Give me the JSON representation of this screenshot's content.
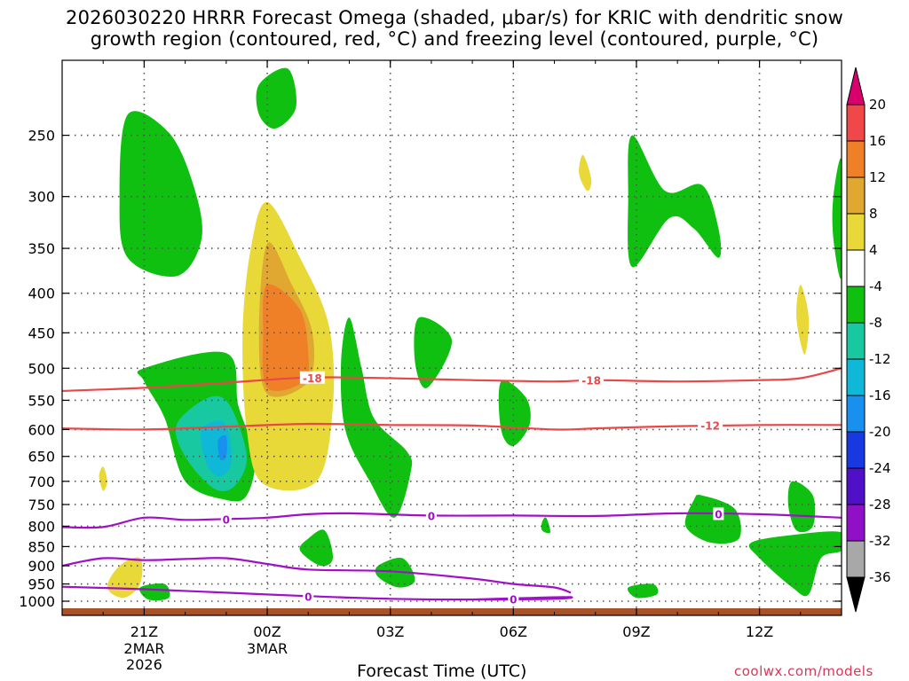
{
  "title": {
    "line1": "2026030220 HRRR Forecast Omega (shaded, μbar/s) for KRIC with dendritic snow",
    "line2": "growth region (contoured, red, °C) and freezing level (contoured, purple, °C)"
  },
  "xlabel": "Forecast Time (UTC)",
  "watermark": "coolwx.com/models",
  "chart_data": {
    "type": "heatmap",
    "x_unit": "hours from 2026030220",
    "xlim": [
      -1,
      18
    ],
    "y_unit": "hPa",
    "ylim": [
      1000,
      200
    ],
    "x_ticks": [
      {
        "x": 1,
        "label": "21Z",
        "sub": [
          "2MAR",
          "2026"
        ]
      },
      {
        "x": 4,
        "label": "00Z",
        "sub": [
          "3MAR"
        ]
      },
      {
        "x": 7,
        "label": "03Z",
        "sub": []
      },
      {
        "x": 10,
        "label": "06Z",
        "sub": []
      },
      {
        "x": 13,
        "label": "09Z",
        "sub": []
      },
      {
        "x": 16,
        "label": "12Z",
        "sub": []
      }
    ],
    "y_ticks": [
      250,
      300,
      350,
      400,
      450,
      500,
      550,
      600,
      650,
      700,
      750,
      800,
      850,
      900,
      950,
      1000
    ],
    "colorbar": {
      "levels": [
        20,
        16,
        12,
        8,
        4,
        -4,
        -8,
        -12,
        -16,
        -20,
        -24,
        -28,
        -32,
        -36
      ],
      "colors": [
        "#d8006c",
        "#f04848",
        "#f08028",
        "#e0a830",
        "#e8d838",
        "#ffffff",
        "#10c010",
        "#18c8a0",
        "#10b8d8",
        "#1890f0",
        "#1838e0",
        "#5010c8",
        "#9010c8",
        "#a8a8a8",
        "#000000"
      ]
    },
    "shaded_regions": [
      {
        "range": "-8 to -4",
        "color": "#10c010",
        "pts": [
          [
            0.6,
            235
          ],
          [
            1.6,
            248
          ],
          [
            2.2,
            290
          ],
          [
            2.4,
            340
          ],
          [
            1.8,
            380
          ],
          [
            0.6,
            360
          ],
          [
            0.4,
            300
          ]
        ]
      },
      {
        "range": "-8 to -4",
        "color": "#10c010",
        "pts": [
          [
            3.8,
            215
          ],
          [
            4.5,
            205
          ],
          [
            4.7,
            230
          ],
          [
            4.2,
            245
          ],
          [
            3.8,
            235
          ]
        ]
      },
      {
        "range": "-8 to -4",
        "color": "#10c010",
        "pts": [
          [
            1.0,
            500
          ],
          [
            3.0,
            478
          ],
          [
            3.3,
            560
          ],
          [
            3.7,
            650
          ],
          [
            3.5,
            730
          ],
          [
            3.0,
            740
          ],
          [
            2.0,
            700
          ],
          [
            1.5,
            580
          ],
          [
            1.0,
            520
          ]
        ]
      },
      {
        "range": "-12 to -8",
        "color": "#18c8a0",
        "pts": [
          [
            1.8,
            590
          ],
          [
            2.6,
            545
          ],
          [
            3.1,
            560
          ],
          [
            3.5,
            650
          ],
          [
            3.2,
            710
          ],
          [
            2.7,
            715
          ],
          [
            2.0,
            650
          ]
        ]
      },
      {
        "range": "-16 to -12",
        "color": "#10b8d8",
        "pts": [
          [
            2.4,
            600
          ],
          [
            2.9,
            585
          ],
          [
            3.1,
            620
          ],
          [
            3.1,
            670
          ],
          [
            2.8,
            690
          ],
          [
            2.5,
            660
          ]
        ]
      },
      {
        "range": "-20 to -16",
        "color": "#1890f0",
        "pts": [
          [
            2.8,
            620
          ],
          [
            3.0,
            612
          ],
          [
            3.0,
            650
          ],
          [
            2.85,
            655
          ]
        ]
      },
      {
        "range": "4 to 8",
        "color": "#e8d838",
        "pts": [
          [
            4.0,
            305
          ],
          [
            4.8,
            360
          ],
          [
            5.5,
            440
          ],
          [
            5.6,
            560
          ],
          [
            5.2,
            700
          ],
          [
            3.9,
            705
          ],
          [
            3.5,
            600
          ],
          [
            3.4,
            450
          ],
          [
            3.6,
            350
          ]
        ]
      },
      {
        "range": "8 to 12",
        "color": "#e0a830",
        "pts": [
          [
            4.0,
            345
          ],
          [
            4.6,
            390
          ],
          [
            5.1,
            450
          ],
          [
            5.0,
            520
          ],
          [
            4.0,
            540
          ],
          [
            3.8,
            450
          ]
        ]
      },
      {
        "range": "12 to 16",
        "color": "#f08028",
        "pts": [
          [
            4.0,
            390
          ],
          [
            4.8,
            420
          ],
          [
            5.0,
            480
          ],
          [
            4.9,
            520
          ],
          [
            4.0,
            530
          ],
          [
            3.9,
            450
          ]
        ]
      },
      {
        "range": "-8 to -4",
        "color": "#10c010",
        "pts": [
          [
            6.0,
            430
          ],
          [
            6.3,
            500
          ],
          [
            6.6,
            580
          ],
          [
            7.4,
            640
          ],
          [
            7.5,
            680
          ],
          [
            7.1,
            780
          ],
          [
            6.5,
            700
          ],
          [
            5.9,
            600
          ],
          [
            5.8,
            490
          ]
        ]
      },
      {
        "range": "-8 to -4",
        "color": "#10c010",
        "pts": [
          [
            7.7,
            430
          ],
          [
            8.5,
            460
          ],
          [
            7.9,
            530
          ],
          [
            7.6,
            490
          ]
        ]
      },
      {
        "range": "-8 to -4",
        "color": "#10c010",
        "pts": [
          [
            9.7,
            520
          ],
          [
            10.3,
            545
          ],
          [
            10.4,
            590
          ],
          [
            10.0,
            630
          ],
          [
            9.7,
            600
          ]
        ]
      },
      {
        "range": "-8 to -4",
        "color": "#10c010",
        "pts": [
          [
            12.9,
            250
          ],
          [
            13.7,
            295
          ],
          [
            14.6,
            290
          ],
          [
            15.0,
            330
          ],
          [
            15.0,
            360
          ],
          [
            14.4,
            330
          ],
          [
            13.8,
            320
          ],
          [
            12.9,
            370
          ],
          [
            12.8,
            300
          ]
        ]
      },
      {
        "range": "-8 to -4",
        "color": "#10c010",
        "pts": [
          [
            16.9,
            820
          ],
          [
            18,
            815
          ],
          [
            18,
            860
          ],
          [
            17.5,
            880
          ],
          [
            17.2,
            980
          ],
          [
            16.8,
            960
          ],
          [
            16.0,
            880
          ],
          [
            15.8,
            840
          ]
        ]
      },
      {
        "range": "-8 to -4",
        "color": "#10c010",
        "pts": [
          [
            14.6,
            730
          ],
          [
            15.4,
            760
          ],
          [
            15.5,
            830
          ],
          [
            14.8,
            840
          ],
          [
            14.2,
            800
          ],
          [
            14.4,
            740
          ]
        ]
      },
      {
        "range": "-8 to -4",
        "color": "#10c010",
        "pts": [
          [
            16.8,
            700
          ],
          [
            17.3,
            730
          ],
          [
            17.3,
            800
          ],
          [
            16.9,
            810
          ],
          [
            16.7,
            750
          ]
        ]
      },
      {
        "range": "-8 to -4",
        "color": "#10c010",
        "pts": [
          [
            17.8,
            300
          ],
          [
            18,
            270
          ],
          [
            18,
            380
          ],
          [
            17.8,
            340
          ]
        ]
      },
      {
        "range": "-8 to -4",
        "color": "#10c010",
        "pts": [
          [
            5.0,
            830
          ],
          [
            5.4,
            810
          ],
          [
            5.6,
            880
          ],
          [
            5.3,
            900
          ],
          [
            4.8,
            860
          ]
        ]
      },
      {
        "range": "-8 to -4",
        "color": "#10c010",
        "pts": [
          [
            6.7,
            900
          ],
          [
            7.3,
            880
          ],
          [
            7.6,
            940
          ],
          [
            7.2,
            960
          ],
          [
            6.7,
            930
          ]
        ]
      },
      {
        "range": "-8 to -4",
        "color": "#10c010",
        "pts": [
          [
            0.9,
            960
          ],
          [
            1.5,
            950
          ],
          [
            1.6,
            990
          ],
          [
            1.1,
            995
          ]
        ]
      },
      {
        "range": "-8 to -4",
        "color": "#10c010",
        "pts": [
          [
            12.8,
            960
          ],
          [
            13.4,
            950
          ],
          [
            13.5,
            980
          ],
          [
            13.0,
            990
          ]
        ]
      },
      {
        "range": "-8 to -4",
        "color": "#10c010",
        "pts": [
          [
            10.7,
            790
          ],
          [
            10.8,
            780
          ],
          [
            10.9,
            815
          ],
          [
            10.7,
            810
          ]
        ]
      },
      {
        "range": "4 to 8",
        "color": "#e8d838",
        "pts": [
          [
            -0.1,
            690
          ],
          [
            0.0,
            670
          ],
          [
            0.1,
            700
          ],
          [
            0.0,
            720
          ]
        ]
      },
      {
        "range": "4 to 8",
        "color": "#e8d838",
        "pts": [
          [
            0.4,
            900
          ],
          [
            0.9,
            880
          ],
          [
            0.9,
            950
          ],
          [
            0.5,
            990
          ],
          [
            0.1,
            960
          ]
        ]
      },
      {
        "range": "4 to 8",
        "color": "#e8d838",
        "pts": [
          [
            11.7,
            265
          ],
          [
            11.9,
            285
          ],
          [
            11.8,
            295
          ],
          [
            11.6,
            280
          ]
        ]
      },
      {
        "range": "4 to 8",
        "color": "#e8d838",
        "pts": [
          [
            17.0,
            390
          ],
          [
            17.2,
            430
          ],
          [
            17.1,
            480
          ],
          [
            16.9,
            430
          ]
        ]
      }
    ],
    "contours": [
      {
        "name": "dgz-18",
        "label": "-18",
        "color": "#e84848",
        "points": [
          [
            -1,
            535
          ],
          [
            1,
            530
          ],
          [
            3,
            522
          ],
          [
            5,
            514
          ],
          [
            7,
            515
          ],
          [
            9,
            518
          ],
          [
            11,
            520
          ],
          [
            12,
            518
          ],
          [
            14,
            520
          ],
          [
            16,
            518
          ],
          [
            17,
            515
          ],
          [
            18,
            500
          ]
        ],
        "label_at": [
          [
            5.1,
            514
          ],
          [
            11.9,
            518
          ]
        ]
      },
      {
        "name": "dgz-12",
        "label": "-12",
        "color": "#e84848",
        "points": [
          [
            -1,
            598
          ],
          [
            1,
            600
          ],
          [
            3,
            595
          ],
          [
            5,
            590
          ],
          [
            7,
            592
          ],
          [
            9,
            593
          ],
          [
            11,
            600
          ],
          [
            12,
            598
          ],
          [
            14,
            594
          ],
          [
            16,
            592
          ],
          [
            18,
            592
          ]
        ],
        "label_at": [
          [
            14.8,
            592
          ]
        ]
      },
      {
        "name": "frz-0-upper",
        "label": "0",
        "color": "#a010c8",
        "points": [
          [
            -1,
            802
          ],
          [
            0,
            802
          ],
          [
            1,
            780
          ],
          [
            2,
            785
          ],
          [
            3,
            783
          ],
          [
            4,
            780
          ],
          [
            5,
            772
          ],
          [
            6,
            770
          ],
          [
            8,
            775
          ],
          [
            10,
            775
          ],
          [
            12,
            776
          ],
          [
            14,
            770
          ],
          [
            16,
            772
          ],
          [
            18,
            780
          ]
        ],
        "label_at": [
          [
            3.0,
            783
          ],
          [
            8.0,
            775
          ],
          [
            15.0,
            771
          ]
        ]
      },
      {
        "name": "frz-0-lower1",
        "label": "",
        "color": "#a010c8",
        "points": [
          [
            -1,
            900
          ],
          [
            0,
            880
          ],
          [
            1,
            885
          ],
          [
            2,
            882
          ],
          [
            3,
            880
          ],
          [
            4,
            895
          ],
          [
            5,
            910
          ],
          [
            7,
            915
          ],
          [
            9,
            935
          ],
          [
            10,
            950
          ],
          [
            11,
            960
          ],
          [
            11.4,
            975
          ]
        ],
        "label_at": []
      },
      {
        "name": "frz-0-lower2",
        "label": "0",
        "color": "#a010c8",
        "points": [
          [
            -1,
            958
          ],
          [
            1,
            965
          ],
          [
            3,
            975
          ],
          [
            5,
            985
          ],
          [
            7,
            993
          ],
          [
            9,
            995
          ],
          [
            11,
            993
          ],
          [
            11.4,
            988
          ],
          [
            10.5,
            990
          ],
          [
            9,
            995
          ]
        ],
        "label_at": [
          [
            5.0,
            985
          ],
          [
            10.0,
            993
          ]
        ]
      }
    ]
  }
}
